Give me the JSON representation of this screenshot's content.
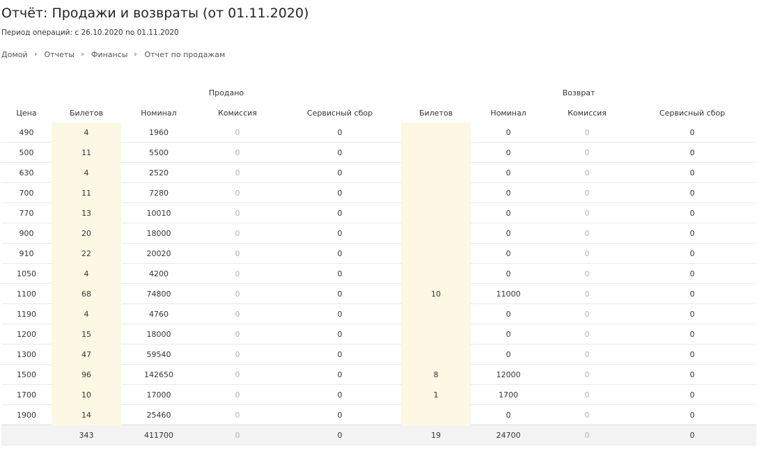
{
  "title": "Отчёт: Продажи и возвраты (от 01.11.2020)",
  "period": "Период операций: с 26.10.2020 по 01.11.2020",
  "breadcrumbs": [
    "Домой",
    "Отчеты",
    "Финансы",
    "Отчет по продажам"
  ],
  "table": {
    "groups": {
      "sold": "Продано",
      "returned": "Возврат"
    },
    "columns": [
      "Цена",
      "Билетов",
      "Номинал",
      "Комиссия",
      "Сервисный сбор",
      "Билетов",
      "Номинал",
      "Комиссия",
      "Сервисный сбор"
    ],
    "rows": [
      [
        "490",
        "4",
        "1960",
        "0",
        "0",
        "",
        "0",
        "0",
        "0"
      ],
      [
        "500",
        "11",
        "5500",
        "0",
        "0",
        "",
        "0",
        "0",
        "0"
      ],
      [
        "630",
        "4",
        "2520",
        "0",
        "0",
        "",
        "0",
        "0",
        "0"
      ],
      [
        "700",
        "11",
        "7280",
        "0",
        "0",
        "",
        "0",
        "0",
        "0"
      ],
      [
        "770",
        "13",
        "10010",
        "0",
        "0",
        "",
        "0",
        "0",
        "0"
      ],
      [
        "900",
        "20",
        "18000",
        "0",
        "0",
        "",
        "0",
        "0",
        "0"
      ],
      [
        "910",
        "22",
        "20020",
        "0",
        "0",
        "",
        "0",
        "0",
        "0"
      ],
      [
        "1050",
        "4",
        "4200",
        "0",
        "0",
        "",
        "0",
        "0",
        "0"
      ],
      [
        "1100",
        "68",
        "74800",
        "0",
        "0",
        "10",
        "11000",
        "0",
        "0"
      ],
      [
        "1190",
        "4",
        "4760",
        "0",
        "0",
        "",
        "0",
        "0",
        "0"
      ],
      [
        "1200",
        "15",
        "18000",
        "0",
        "0",
        "",
        "0",
        "0",
        "0"
      ],
      [
        "1300",
        "47",
        "59540",
        "0",
        "0",
        "",
        "0",
        "0",
        "0"
      ],
      [
        "1500",
        "96",
        "142650",
        "0",
        "0",
        "8",
        "12000",
        "0",
        "0"
      ],
      [
        "1700",
        "10",
        "17000",
        "0",
        "0",
        "1",
        "1700",
        "0",
        "0"
      ],
      [
        "1900",
        "14",
        "25460",
        "0",
        "0",
        "",
        "0",
        "0",
        "0"
      ]
    ],
    "totals": [
      "",
      "343",
      "411700",
      "0",
      "0",
      "19",
      "24700",
      "0",
      "0"
    ]
  },
  "colors": {
    "highlight_column": "#fdf8e3",
    "muted_text": "#b3b3b3",
    "totals_background": "#f3f3f3"
  }
}
